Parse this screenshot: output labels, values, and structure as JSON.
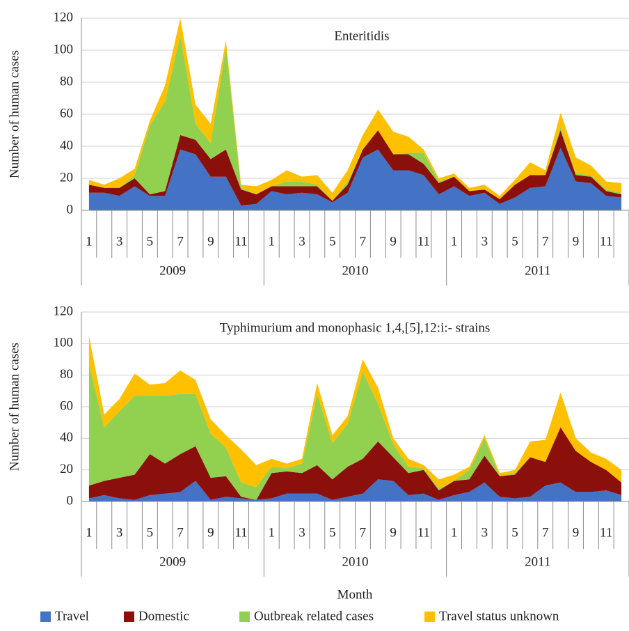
{
  "chart_data": [
    {
      "type": "stacked-area",
      "annotation": "Enteritidis",
      "ylabel": "Number of human cases",
      "categories": [
        "1",
        null,
        "3",
        null,
        "5",
        null,
        "7",
        null,
        "9",
        null,
        "11",
        null,
        "1",
        null,
        "3",
        null,
        "5",
        null,
        "7",
        null,
        "9",
        null,
        "11",
        null,
        "1",
        null,
        "3",
        null,
        "5",
        null,
        "7",
        null,
        "9",
        null,
        "11",
        null
      ],
      "groups": [
        "2009",
        "2010",
        "2011"
      ],
      "ylim": [
        0,
        120
      ],
      "yticks": [
        0,
        20,
        40,
        60,
        80,
        100,
        120
      ],
      "grid": true,
      "series": [
        {
          "color": "#4472c4",
          "values": [
            11,
            11,
            9,
            15,
            9,
            9,
            38,
            35,
            21,
            21,
            3,
            4,
            12,
            10,
            11,
            10,
            5,
            11,
            33,
            38,
            25,
            25,
            22,
            10,
            15,
            9,
            11,
            4,
            8,
            14,
            15,
            39,
            18,
            17,
            9,
            8
          ]
        },
        {
          "color": "#8b0f0a",
          "values": [
            5,
            3,
            5,
            5,
            1,
            3,
            9,
            9,
            11,
            17,
            10,
            6,
            3,
            5,
            4,
            5,
            1,
            5,
            5,
            12,
            10,
            10,
            7,
            7,
            6,
            3,
            2,
            3,
            8,
            8,
            7,
            11,
            4,
            4,
            3,
            2
          ]
        },
        {
          "color": "#92d050",
          "values": [
            0,
            0,
            0,
            2,
            43,
            56,
            62,
            10,
            10,
            64,
            1,
            0,
            0,
            3,
            3,
            1,
            0,
            2,
            0,
            0,
            0,
            1,
            7,
            1,
            0,
            0,
            0,
            0,
            0,
            0,
            0,
            2,
            1,
            1,
            1,
            1
          ]
        },
        {
          "color": "#ffc000",
          "values": [
            3,
            2,
            6,
            4,
            3,
            10,
            11,
            12,
            12,
            4,
            2,
            5,
            4,
            7,
            3,
            6,
            5,
            7,
            9,
            13,
            14,
            10,
            2,
            2,
            2,
            2,
            3,
            2,
            3,
            8,
            3,
            9,
            10,
            6,
            5,
            6
          ]
        }
      ]
    },
    {
      "type": "stacked-area",
      "annotation": "Typhimurium and monophasic 1,4,[5],12:i:- strains",
      "ylabel": "Number of human cases",
      "xlabel": "Month",
      "categories": [
        "1",
        null,
        "3",
        null,
        "5",
        null,
        "7",
        null,
        "9",
        null,
        "11",
        null,
        "1",
        null,
        "3",
        null,
        "5",
        null,
        "7",
        null,
        "9",
        null,
        "11",
        null,
        "1",
        null,
        "3",
        null,
        "5",
        null,
        "7",
        null,
        "9",
        null,
        "11",
        null
      ],
      "groups": [
        "2009",
        "2010",
        "2011"
      ],
      "ylim": [
        0,
        120
      ],
      "yticks": [
        0,
        20,
        40,
        60,
        80,
        100,
        120
      ],
      "grid": true,
      "series": [
        {
          "name": "Travel",
          "color": "#4472c4",
          "values": [
            2,
            4,
            2,
            1,
            4,
            5,
            6,
            13,
            1,
            3,
            2,
            1,
            2,
            5,
            5,
            5,
            1,
            3,
            5,
            14,
            13,
            4,
            5,
            1,
            4,
            6,
            12,
            3,
            2,
            3,
            10,
            12,
            6,
            6,
            7,
            4
          ]
        },
        {
          "name": "Domestic",
          "color": "#8b0f0a",
          "values": [
            8,
            9,
            13,
            16,
            26,
            19,
            24,
            22,
            14,
            13,
            1,
            0,
            16,
            14,
            13,
            18,
            13,
            19,
            22,
            24,
            15,
            14,
            15,
            6,
            9,
            8,
            17,
            13,
            15,
            25,
            15,
            35,
            26,
            19,
            13,
            8
          ]
        },
        {
          "name": "Outbreak related cases",
          "color": "#92d050",
          "values": [
            77,
            34,
            42,
            50,
            37,
            43,
            38,
            33,
            28,
            18,
            9,
            8,
            4,
            2,
            6,
            45,
            23,
            27,
            55,
            24,
            8,
            4,
            1,
            1,
            0,
            6,
            11,
            0,
            1,
            0,
            0,
            0,
            0,
            0,
            0,
            0
          ]
        },
        {
          "name": "Travel status unknown",
          "color": "#ffc000",
          "values": [
            18,
            8,
            8,
            14,
            7,
            8,
            15,
            9,
            9,
            8,
            21,
            14,
            5,
            3,
            3,
            7,
            5,
            5,
            8,
            10,
            4,
            5,
            2,
            6,
            4,
            2,
            2,
            2,
            2,
            10,
            14,
            22,
            8,
            6,
            7,
            8
          ]
        }
      ]
    }
  ]
}
